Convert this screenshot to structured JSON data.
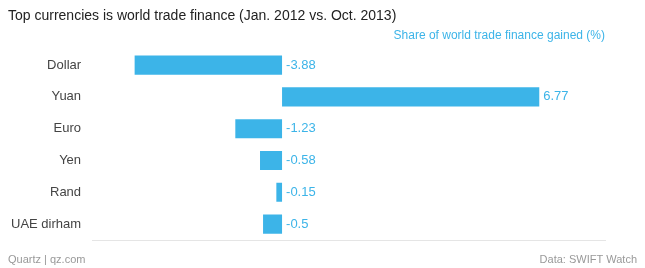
{
  "chart_data": {
    "type": "bar",
    "orientation": "horizontal",
    "title": "Top currencies is world trade finance (Jan. 2012 vs. Oct. 2013)",
    "subtitle": "Share of world trade finance gained (%)",
    "annotations": [
      "Quartz | qz.com",
      "Data: SWIFT Watch"
    ],
    "categories": [
      "Dollar",
      "Yuan",
      "Euro",
      "Yen",
      "Rand",
      "UAE dirham"
    ],
    "values": [
      -3.88,
      6.77,
      -1.23,
      -0.58,
      -0.15,
      -0.5
    ],
    "color": "#3cb4e8",
    "xlim": [
      -5.0,
      8.5
    ],
    "grid": false,
    "tick_labels": "y",
    "data_labels": true
  }
}
